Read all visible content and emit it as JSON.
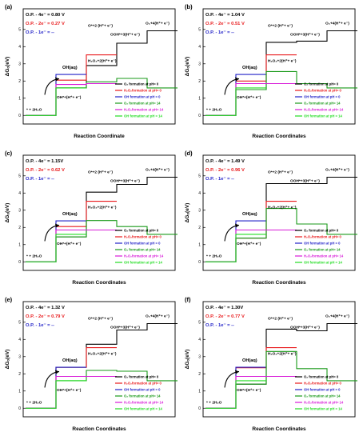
{
  "figure": {
    "colors": {
      "o2_ph0": "#000000",
      "h2o2_ph0": "#e8191b",
      "oh_ph0": "#2121c8",
      "o2_ph14": "#1a9a1a",
      "h2o2_ph14": "#d81bd8",
      "oh_ph14": "#22dd22"
    },
    "legend_labels": [
      "O₂ formation at pH= 0",
      "H₂O₂formation at pH= 0",
      "OH formation at pH = 0",
      "O₂ formation at pH= 14",
      "H₂O₂formation at pH= 14",
      "OH formation at pH = 14"
    ],
    "series_keys": [
      "o2_ph0",
      "h2o2_ph0",
      "oh_ph0",
      "o2_ph14",
      "h2o2_ph14",
      "oh_ph14"
    ],
    "y_ticks": [
      "0",
      "1",
      "2",
      "3",
      "4",
      "5"
    ],
    "state_labels": {
      "start": "* + 2H₂O",
      "ohstar": "OH*+(H⁺+ e⁻)",
      "oh_aq": "OH(aq)",
      "h2o2": "H₂O₂+2(H⁺+ e⁻)",
      "ostar": "O*+2 (H⁺+ e⁻)",
      "oohstar": "OOH*+3(H⁺+ e⁻)",
      "o2": "O₂+4(H⁺+ e⁻)"
    }
  },
  "chart_data": [
    {
      "type": "line",
      "panel_label": "(a)",
      "op_4e": "O.P. - 4e⁻ = 0.80 V",
      "op_2e": "O.P. - 2e⁻ = 0.27 V",
      "op_1e": "O.P. - 1e⁻ =   --",
      "ylabel": "ΔGₒ(eV)",
      "xlabel": "Reaction Coordinate",
      "ylim": [
        -0.5,
        6.2
      ],
      "steps": [
        "start",
        "ohstar",
        "ostar",
        "oohstar",
        "o2"
      ],
      "series": [
        {
          "key": "o2_ph0",
          "values": [
            0,
            1.6,
            2.9,
            4.2,
            4.92
          ]
        },
        {
          "key": "h2o2_ph0",
          "values": [
            0,
            2.05,
            3.52
          ]
        },
        {
          "key": "oh_ph0",
          "values": [
            0,
            2.38
          ]
        },
        {
          "key": "o2_ph14",
          "values": [
            0,
            1.6,
            1.95,
            2.15,
            1.6
          ]
        },
        {
          "key": "h2o2_ph14",
          "values": [
            0,
            1.8,
            1.85
          ]
        },
        {
          "key": "oh_ph14",
          "values": [
            0,
            1.6
          ]
        }
      ]
    },
    {
      "type": "line",
      "panel_label": "(b)",
      "op_4e": "O.P. - 4e⁻ = 1.04 V",
      "op_2e": "O.P. - 2e⁻ = 0.51 V",
      "op_1e": "O.P. - 1e⁻ =   --",
      "ylabel": "ΔGₒ(eV)",
      "xlabel": "Reaction Coordinates",
      "ylim": [
        -0.5,
        6.2
      ],
      "steps": [
        "start",
        "ohstar",
        "ostar",
        "oohstar",
        "o2"
      ],
      "series": [
        {
          "key": "o2_ph0",
          "values": [
            0,
            1.5,
            4.25,
            4.32,
            4.92
          ]
        },
        {
          "key": "h2o2_ph0",
          "values": [
            0,
            2.0,
            3.52
          ]
        },
        {
          "key": "oh_ph0",
          "values": [
            0,
            2.38
          ]
        },
        {
          "key": "o2_ph14",
          "values": [
            0,
            1.5,
            2.55,
            1.85,
            1.6
          ]
        },
        {
          "key": "h2o2_ph14",
          "values": [
            0,
            1.85,
            1.85
          ]
        },
        {
          "key": "oh_ph14",
          "values": [
            0,
            1.6
          ]
        }
      ]
    },
    {
      "type": "line",
      "panel_label": "(c)",
      "op_4e": "O.P. - 4e⁻ = 1.15V",
      "op_2e": "O.P. - 2e⁻ = 0.62 V",
      "op_1e": "O.P. - 1e⁻ =   --",
      "ylabel": "ΔGₒ(eV)",
      "xlabel": "Reaction Coordinates",
      "ylim": [
        -0.5,
        6.2
      ],
      "steps": [
        "start",
        "ohstar",
        "ostar",
        "oohstar",
        "o2"
      ],
      "series": [
        {
          "key": "o2_ph0",
          "values": [
            0,
            1.45,
            4.05,
            4.5,
            4.92
          ]
        },
        {
          "key": "h2o2_ph0",
          "values": [
            0,
            2.05,
            3.52
          ]
        },
        {
          "key": "oh_ph0",
          "values": [
            0,
            2.38
          ]
        },
        {
          "key": "o2_ph14",
          "values": [
            0,
            1.45,
            2.4,
            2.05,
            1.6
          ]
        },
        {
          "key": "h2o2_ph14",
          "values": [
            0,
            1.85,
            1.85
          ]
        },
        {
          "key": "oh_ph14",
          "values": [
            0,
            1.6
          ]
        }
      ]
    },
    {
      "type": "line",
      "panel_label": "(d)",
      "op_4e": "O.P. - 4e⁻ = 1.49 V",
      "op_2e": "O.P. - 2e⁻ = 0.96 V",
      "op_1e": "O.P. - 1e⁻ =   --",
      "ylabel": "ΔGₒ(eV)",
      "xlabel": "Reaction Coordinates",
      "ylim": [
        -0.5,
        6.2
      ],
      "steps": [
        "start",
        "ohstar",
        "ostar",
        "oohstar",
        "o2"
      ],
      "series": [
        {
          "key": "o2_ph0",
          "values": [
            0,
            1.38,
            4.55,
            4.55,
            4.92
          ]
        },
        {
          "key": "h2o2_ph0",
          "values": [
            0,
            1.38,
            3.52
          ]
        },
        {
          "key": "oh_ph0",
          "values": [
            0,
            2.38
          ]
        },
        {
          "key": "o2_ph14",
          "values": [
            0,
            1.38,
            3.1,
            2.2,
            1.6
          ]
        },
        {
          "key": "h2o2_ph14",
          "values": [
            0,
            1.85,
            1.85
          ]
        },
        {
          "key": "oh_ph14",
          "values": [
            0,
            1.6
          ]
        }
      ]
    },
    {
      "type": "line",
      "panel_label": "(e)",
      "op_4e": "O.P. - 4e⁻ = 1.32 V",
      "op_2e": "O.P. - 2e⁻ = 0.79 V",
      "op_1e": "O.P. - 1e⁻ =   --",
      "ylabel": "ΔGₒ(eV)",
      "xlabel": "Reaction Coordinates",
      "ylim": [
        -0.5,
        6.2
      ],
      "steps": [
        "start",
        "ohstar",
        "ostar",
        "oohstar",
        "o2"
      ],
      "series": [
        {
          "key": "o2_ph0",
          "values": [
            0,
            2.38,
            3.72,
            4.55,
            4.92
          ]
        },
        {
          "key": "h2o2_ph0",
          "values": [
            0,
            2.38,
            3.52
          ]
        },
        {
          "key": "oh_ph0",
          "values": [
            0,
            2.38
          ]
        },
        {
          "key": "o2_ph14",
          "values": [
            0,
            1.6,
            2.2,
            2.15,
            1.6
          ]
        },
        {
          "key": "h2o2_ph14",
          "values": [
            0,
            1.85,
            1.85
          ]
        },
        {
          "key": "oh_ph14",
          "values": [
            0,
            1.6
          ]
        }
      ]
    },
    {
      "type": "line",
      "panel_label": "(f)",
      "op_4e": "O.P. - 4e⁻ = 1.30V",
      "op_2e": "O.P. - 2e⁻ = 0.77 V",
      "op_1e": "O.P. - 1e⁻ =   --",
      "ylabel": "ΔGₒ(eV)",
      "xlabel": "Reaction Coordinates",
      "ylim": [
        -0.5,
        6.2
      ],
      "steps": [
        "start",
        "ohstar",
        "ostar",
        "oohstar",
        "o2"
      ],
      "series": [
        {
          "key": "o2_ph0",
          "values": [
            0,
            1.4,
            4.6,
            4.5,
            4.92
          ]
        },
        {
          "key": "h2o2_ph0",
          "values": [
            0,
            2.35,
            3.52
          ]
        },
        {
          "key": "oh_ph0",
          "values": [
            0,
            2.38
          ]
        },
        {
          "key": "o2_ph14",
          "values": [
            0,
            1.4,
            3.3,
            2.3,
            1.6
          ]
        },
        {
          "key": "h2o2_ph14",
          "values": [
            0,
            1.85,
            1.85
          ]
        },
        {
          "key": "oh_ph14",
          "values": [
            0,
            1.6
          ]
        }
      ]
    }
  ]
}
